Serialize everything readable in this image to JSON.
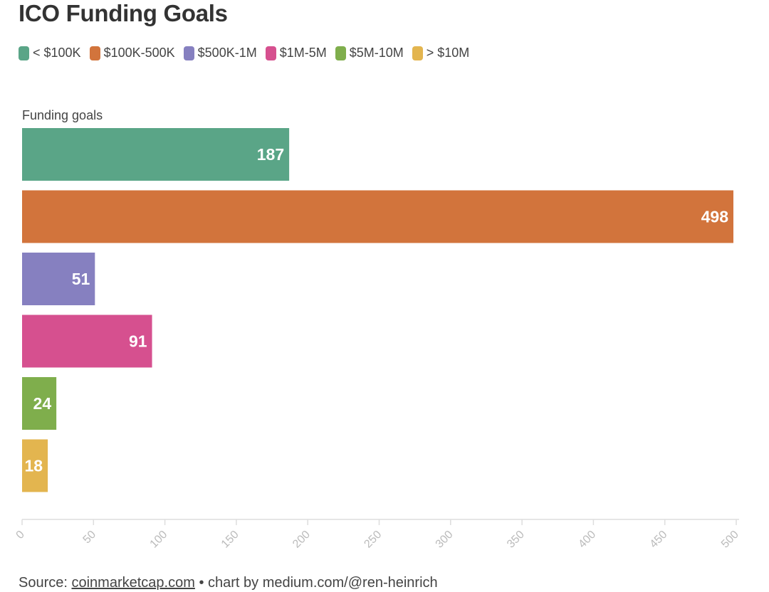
{
  "chart_data": {
    "type": "bar",
    "orientation": "horizontal",
    "title": "ICO Funding Goals",
    "ylabel": "Funding goals",
    "xlabel": "",
    "categories": [
      "< $100K",
      "$100K-500K",
      "$500K-1M",
      "$1M-5M",
      "$5M-10M",
      "> $10M"
    ],
    "values": [
      187,
      498,
      51,
      91,
      24,
      18
    ],
    "colors": [
      "#5aa587",
      "#d2743c",
      "#8680c0",
      "#d6508f",
      "#7fae4c",
      "#e3b54f"
    ],
    "xlim": [
      0,
      500
    ],
    "xticks": [
      "0",
      "50",
      "100",
      "150",
      "200",
      "250",
      "300",
      "350",
      "400",
      "450",
      "500"
    ],
    "legend_position": "top-left"
  },
  "footer": {
    "source_prefix": "Source: ",
    "source_link": "coinmarketcap.com",
    "source_suffix": " • chart by medium.com/@ren-heinrich"
  }
}
